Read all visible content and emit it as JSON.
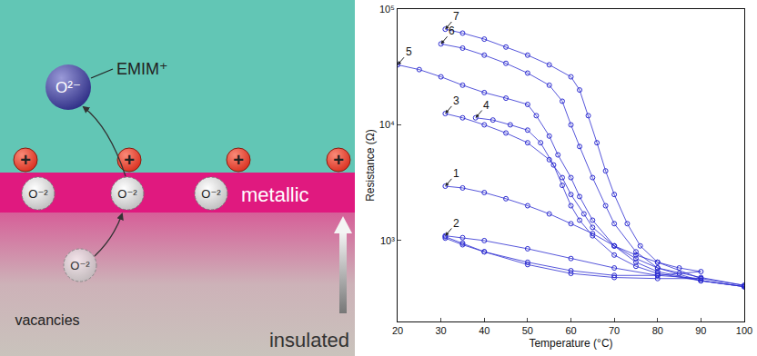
{
  "diagram": {
    "ball_label": "O²⁻",
    "ion_label": "EMIM⁺",
    "cation": "+",
    "anion": "O⁻²",
    "top_layer": "metallic",
    "bottom_layer": "insulated",
    "vacancy_label": "vacancies"
  },
  "chart_data": {
    "type": "scatter",
    "xlabel": "Temperature (°C)",
    "ylabel": "Resistance (Ω)",
    "log": "y",
    "grid": false,
    "marker": "circle-open",
    "xlim": [
      20,
      100
    ],
    "xticks": [
      20,
      30,
      40,
      50,
      60,
      70,
      80,
      90,
      100
    ],
    "ylim": [
      200,
      100000
    ],
    "yticks": [
      {
        "value": 1000,
        "label": "10³"
      },
      {
        "value": 10000,
        "label": "10⁴"
      },
      {
        "value": 100000,
        "label": "10⁵"
      }
    ],
    "series": [
      {
        "name": "1",
        "color": "#2b2bd0",
        "x": [
          31,
          35,
          40,
          45,
          50,
          55,
          60,
          65,
          70,
          75,
          80,
          85,
          90,
          85,
          80,
          70,
          60,
          50,
          40,
          35,
          31
        ],
        "values": [
          2950,
          2850,
          2600,
          2300,
          2000,
          1700,
          1400,
          1150,
          900,
          750,
          650,
          580,
          540,
          520,
          500,
          500,
          550,
          650,
          800,
          920,
          1050
        ]
      },
      {
        "name": "2",
        "color": "#2b2bd0",
        "x": [
          31,
          35,
          40,
          50,
          60,
          70,
          80,
          90,
          80,
          70,
          60,
          50,
          40,
          35,
          31
        ],
        "values": [
          1100,
          1060,
          1000,
          850,
          700,
          580,
          500,
          470,
          470,
          480,
          520,
          620,
          800,
          950,
          1080
        ]
      },
      {
        "name": "3",
        "color": "#2b2bd0",
        "x": [
          31,
          35,
          40,
          45,
          50,
          55,
          58,
          60,
          63,
          65,
          70,
          75,
          80,
          90,
          100
        ],
        "values": [
          12500,
          11500,
          10000,
          8500,
          7000,
          5000,
          3500,
          2500,
          1700,
          1300,
          900,
          700,
          580,
          480,
          410
        ]
      },
      {
        "name": "4",
        "color": "#2b2bd0",
        "x": [
          38,
          42,
          46,
          50,
          53,
          56,
          58,
          60,
          62,
          65,
          70,
          75,
          80,
          90,
          100
        ],
        "values": [
          11500,
          11000,
          10000,
          9000,
          7000,
          4500,
          3000,
          2000,
          1500,
          1100,
          750,
          600,
          520,
          450,
          400
        ]
      },
      {
        "name": "5",
        "color": "#2b2bd0",
        "x": [
          20,
          25,
          30,
          35,
          40,
          45,
          50,
          52,
          55,
          57,
          60,
          62,
          65,
          70,
          75,
          80,
          90,
          100
        ],
        "values": [
          33000,
          30000,
          26000,
          22000,
          19000,
          17000,
          15000,
          12000,
          8000,
          5500,
          3500,
          2400,
          1500,
          900,
          650,
          540,
          450,
          400
        ]
      },
      {
        "name": "6",
        "color": "#2b2bd0",
        "x": [
          30,
          35,
          40,
          45,
          50,
          55,
          58,
          60,
          62,
          65,
          68,
          70,
          75,
          80,
          90,
          100
        ],
        "values": [
          50000,
          46000,
          40000,
          34000,
          28000,
          22000,
          16000,
          10000,
          6500,
          3500,
          2000,
          1400,
          800,
          580,
          450,
          400
        ]
      },
      {
        "name": "7",
        "color": "#2b2bd0",
        "x": [
          31,
          35,
          40,
          45,
          50,
          55,
          60,
          62,
          64,
          66,
          68,
          70,
          73,
          76,
          80,
          90,
          100
        ],
        "values": [
          67000,
          62000,
          55000,
          47000,
          40000,
          33000,
          26000,
          20000,
          12000,
          7000,
          4000,
          2500,
          1400,
          900,
          650,
          470,
          410
        ]
      }
    ]
  }
}
